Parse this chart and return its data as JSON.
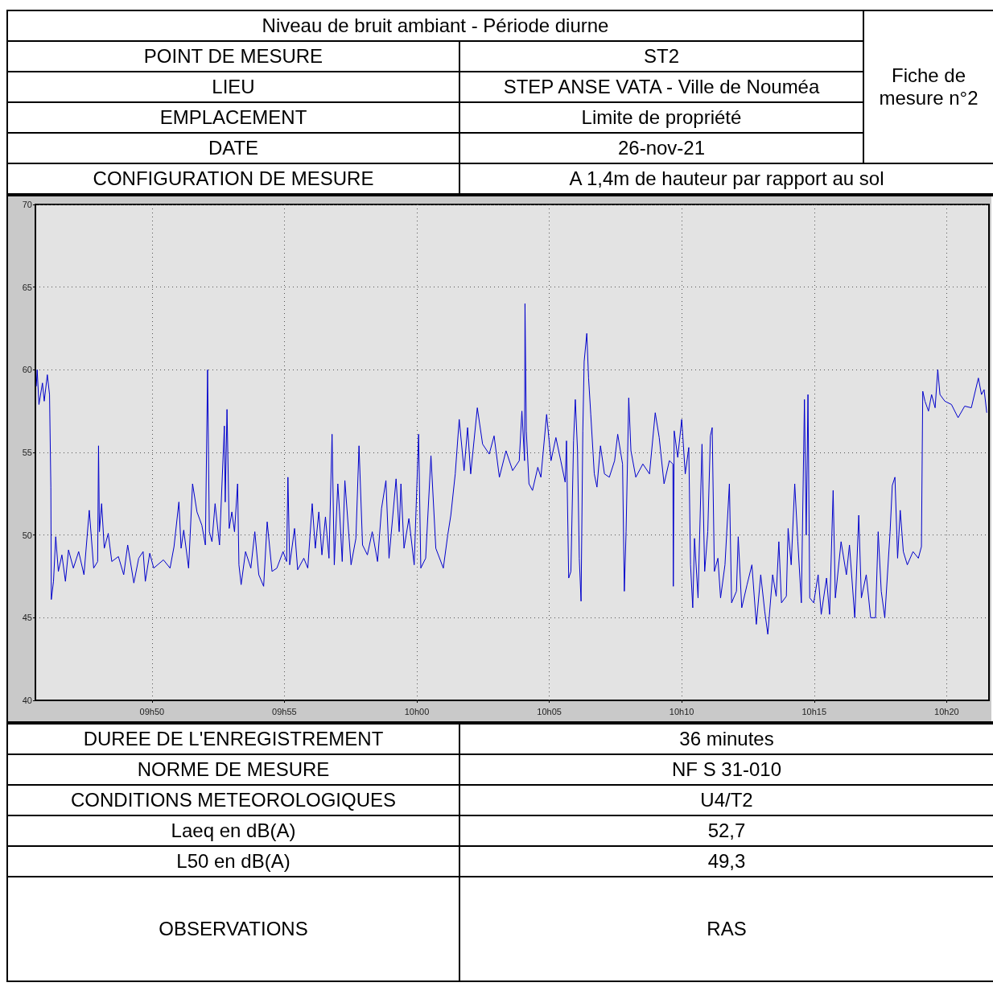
{
  "chart_data": {
    "type": "line",
    "title": "Niveau de bruit ambiant - Période diurne",
    "annotations": [
      "Fiche de mesure n°2",
      "POINT DE MESURE",
      "ST2",
      "LIEU",
      "STEP ANSE VATA - Ville de Nouméa",
      "EMPLACEMENT",
      "Limite de propriété",
      "DATE",
      "26-nov-21",
      "CONFIGURATION DE MESURE",
      "A 1,4m de hauteur par rapport au sol",
      "DUREE DE L'ENREGISTREMENT",
      "36 minutes",
      "NORME DE MESURE",
      "NF S 31-010",
      "CONDITIONS METEOROLOGIQUES",
      "U4/T2",
      "Laeq en dB(A)",
      "52,7",
      "L50 en dB(A)",
      "49,3",
      "OBSERVATIONS",
      "RAS"
    ],
    "xlim": [
      "--11-26T09:45:36",
      "--11-26T10:21:36"
    ],
    "xticks": [
      {
        "value": "--11-26T09:50",
        "label": "09h50"
      },
      {
        "value": "--11-26T09:55",
        "label": "09h55"
      },
      {
        "value": "--11-26T10:00",
        "label": "10h00"
      },
      {
        "value": "--11-26T10:05",
        "label": "10h05"
      },
      {
        "value": "--11-26T10:10",
        "label": "10h10"
      },
      {
        "value": "--11-26T10:15",
        "label": "10h15"
      },
      {
        "value": "--11-26T10:20",
        "label": "10h20"
      }
    ],
    "ylim": [
      40,
      70
    ],
    "yticks": [
      40,
      45,
      50,
      55,
      60,
      65,
      70
    ],
    "grid": true,
    "line_style": "solid",
    "marker": "none",
    "series": [
      {
        "color": "#0000cc",
        "x": [
          "--11-26T09:45:38",
          "--11-26T09:45:40",
          "--11-26T09:45:44",
          "--11-26T09:45:52",
          "--11-26T09:45:56",
          "--11-26T09:46:03",
          "--11-26T09:46:08",
          "--11-26T09:46:11",
          "--11-26T09:46:12",
          "--11-26T09:46:17",
          "--11-26T09:46:22",
          "--11-26T09:46:28",
          "--11-26T09:46:36",
          "--11-26T09:46:44",
          "--11-26T09:46:51",
          "--11-26T09:47:02",
          "--11-26T09:47:14",
          "--11-26T09:47:26",
          "--11-26T09:47:38",
          "--11-26T09:47:48",
          "--11-26T09:47:57",
          "--11-26T09:47:59",
          "--11-26T09:48:01",
          "--11-26T09:48:06",
          "--11-26T09:48:12",
          "--11-26T09:48:21",
          "--11-26T09:48:29",
          "--11-26T09:48:44",
          "--11-26T09:48:56",
          "--11-26T09:49:05",
          "--11-26T09:49:19",
          "--11-26T09:49:30",
          "--11-26T09:49:40",
          "--11-26T09:49:45",
          "--11-26T09:49:55",
          "--11-26T09:50:04",
          "--11-26T09:50:26",
          "--11-26T09:50:41",
          "--11-26T09:50:50",
          "--11-26T09:51:01",
          "--11-26T09:51:06",
          "--11-26T09:51:12",
          "--11-26T09:51:23",
          "--11-26T09:51:32",
          "--11-26T09:51:42",
          "--11-26T09:51:53",
          "--11-26T09:52:01",
          "--11-26T09:52:06",
          "--11-26T09:52:10",
          "--11-26T09:52:16",
          "--11-26T09:52:23",
          "--11-26T09:52:33",
          "--11-26T09:52:44",
          "--11-26T09:52:46",
          "--11-26T09:52:50",
          "--11-26T09:52:55",
          "--11-26T09:53:01",
          "--11-26T09:53:07",
          "--11-26T09:53:14",
          "--11-26T09:53:17",
          "--11-26T09:53:22",
          "--11-26T09:53:32",
          "--11-26T09:53:44",
          "--11-26T09:53:53",
          "--11-26T09:54:02",
          "--11-26T09:54:13",
          "--11-26T09:54:21",
          "--11-26T09:54:32",
          "--11-26T09:54:43",
          "--11-26T09:54:57",
          "--11-26T09:55:05",
          "--11-26T09:55:08",
          "--11-26T09:55:12",
          "--11-26T09:55:23",
          "--11-26T09:55:30",
          "--11-26T09:55:44",
          "--11-26T09:55:53",
          "--11-26T09:56:03",
          "--11-26T09:56:10",
          "--11-26T09:56:18",
          "--11-26T09:56:25",
          "--11-26T09:56:33",
          "--11-26T09:56:41",
          "--11-26T09:56:48",
          "--11-26T09:56:53",
          "--11-26T09:57:01",
          "--11-26T09:57:05",
          "--11-26T09:57:11",
          "--11-26T09:57:17",
          "--11-26T09:57:31",
          "--11-26T09:57:42",
          "--11-26T09:57:49",
          "--11-26T09:57:57",
          "--11-26T09:58:08",
          "--11-26T09:58:19",
          "--11-26T09:58:31",
          "--11-26T09:58:40",
          "--11-26T09:58:50",
          "--11-26T09:58:57",
          "--11-26T09:59:13",
          "--11-26T09:59:20",
          "--11-26T09:59:24",
          "--11-26T09:59:31",
          "--11-26T09:59:42",
          "--11-26T09:59:54",
          "--11-26T10:00:04",
          "--11-26T10:00:09",
          "--11-26T10:00:20",
          "--11-26T10:00:32",
          "--11-26T10:00:43",
          "--11-26T10:01:00",
          "--11-26T10:01:10",
          "--11-26T10:01:17",
          "--11-26T10:01:27",
          "--11-26T10:01:36",
          "--11-26T10:01:47",
          "--11-26T10:01:55",
          "--11-26T10:02:02",
          "--11-26T10:02:17",
          "--11-26T10:02:29",
          "--11-26T10:02:44",
          "--11-26T10:02:55",
          "--11-26T10:03:07",
          "--11-26T10:03:22",
          "--11-26T10:03:37",
          "--11-26T10:03:52",
          "--11-26T10:03:58",
          "--11-26T10:04:04",
          "--11-26T10:04:05",
          "--11-26T10:04:08",
          "--11-26T10:04:14",
          "--11-26T10:04:22",
          "--11-26T10:04:34",
          "--11-26T10:04:41",
          "--11-26T10:04:54",
          "--11-26T10:05:04",
          "--11-26T10:05:15",
          "--11-26T10:05:26",
          "--11-26T10:05:36",
          "--11-26T10:05:39",
          "--11-26T10:05:44",
          "--11-26T10:05:49",
          "--11-26T10:05:55",
          "--11-26T10:05:59",
          "--11-26T10:06:04",
          "--11-26T10:06:08",
          "--11-26T10:06:12",
          "--11-26T10:06:16",
          "--11-26T10:06:19",
          "--11-26T10:06:25",
          "--11-26T10:06:29",
          "--11-26T10:06:34",
          "--11-26T10:06:42",
          "--11-26T10:06:48",
          "--11-26T10:06:56",
          "--11-26T10:07:05",
          "--11-26T10:07:16",
          "--11-26T10:07:28",
          "--11-26T10:07:35",
          "--11-26T10:07:46",
          "--11-26T10:07:50",
          "--11-26T10:07:54",
          "--11-26T10:08:00",
          "--11-26T10:08:05",
          "--11-26T10:08:16",
          "--11-26T10:08:32",
          "--11-26T10:08:47",
          "--11-26T10:09:00",
          "--11-26T10:09:09",
          "--11-26T10:09:20",
          "--11-26T10:09:32",
          "--11-26T10:09:40",
          "--11-26T10:09:41",
          "--11-26T10:09:43",
          "--11-26T10:09:51",
          "--11-26T10:10:00",
          "--11-26T10:10:08",
          "--11-26T10:10:16",
          "--11-26T10:10:20",
          "--11-26T10:10:25",
          "--11-26T10:10:29",
          "--11-26T10:10:37",
          "--11-26T10:10:46",
          "--11-26T10:10:52",
          "--11-26T10:10:59",
          "--11-26T10:11:05",
          "--11-26T10:11:09",
          "--11-26T10:11:14",
          "--11-26T10:11:22",
          "--11-26T10:11:28",
          "--11-26T10:11:38",
          "--11-26T10:11:48",
          "--11-26T10:11:53",
          "--11-26T10:12:04",
          "--11-26T10:12:08",
          "--11-26T10:12:16",
          "--11-26T10:12:28",
          "--11-26T10:12:39",
          "--11-26T10:12:49",
          "--11-26T10:12:59",
          "--11-26T10:13:08",
          "--11-26T10:13:15",
          "--11-26T10:13:26",
          "--11-26T10:13:34",
          "--11-26T10:13:40",
          "--11-26T10:13:46",
          "--11-26T10:13:57",
          "--11-26T10:14:01",
          "--11-26T10:14:08",
          "--11-26T10:14:16",
          "--11-26T10:14:23",
          "--11-26T10:14:31",
          "--11-26T10:14:38",
          "--11-26T10:14:42",
          "--11-26T10:14:46",
          "--11-26T10:14:50",
          "--11-26T10:14:59",
          "--11-26T10:15:09",
          "--11-26T10:15:16",
          "--11-26T10:15:28",
          "--11-26T10:15:35",
          "--11-26T10:15:43",
          "--11-26T10:15:48",
          "--11-26T10:16:01",
          "--11-26T10:16:13",
          "--11-26T10:16:20",
          "--11-26T10:16:32",
          "--11-26T10:16:41",
          "--11-26T10:16:47",
          "--11-26T10:16:58",
          "--11-26T10:17:08",
          "--11-26T10:17:19",
          "--11-26T10:17:25",
          "--11-26T10:17:32",
          "--11-26T10:17:40",
          "--11-26T10:17:52",
          "--11-26T10:17:57",
          "--11-26T10:18:03",
          "--11-26T10:18:09",
          "--11-26T10:18:15",
          "--11-26T10:18:22",
          "--11-26T10:18:31",
          "--11-26T10:18:44",
          "--11-26T10:18:56",
          "--11-26T10:19:03",
          "--11-26T10:19:06",
          "--11-26T10:19:11",
          "--11-26T10:19:19",
          "--11-26T10:19:26",
          "--11-26T10:19:34",
          "--11-26T10:19:40",
          "--11-26T10:19:45",
          "--11-26T10:19:56",
          "--11-26T10:20:11",
          "--11-26T10:20:26",
          "--11-26T10:20:41",
          "--11-26T10:20:56",
          "--11-26T10:21:12",
          "--11-26T10:21:19",
          "--11-26T10:21:25",
          "--11-26T10:21:31"
        ],
        "values": [
          59.0,
          60.0,
          57.9,
          59.2,
          58.1,
          59.7,
          58.5,
          52.9,
          46.1,
          47.2,
          49.9,
          47.8,
          48.8,
          47.2,
          49.1,
          48.0,
          49.0,
          47.6,
          51.5,
          48.0,
          48.4,
          55.4,
          50.2,
          51.9,
          49.2,
          50.1,
          48.4,
          48.7,
          47.6,
          49.4,
          47.1,
          48.6,
          49.0,
          47.2,
          48.9,
          48.0,
          48.5,
          48.0,
          49.3,
          52.0,
          49.2,
          50.3,
          48.0,
          53.1,
          51.4,
          50.6,
          49.4,
          60.0,
          50.2,
          49.6,
          51.9,
          49.4,
          56.6,
          52.0,
          57.6,
          50.4,
          51.4,
          50.2,
          53.1,
          48.2,
          47.0,
          49.0,
          48.0,
          50.2,
          47.6,
          46.9,
          50.8,
          47.8,
          48.0,
          49.0,
          48.4,
          53.5,
          48.2,
          50.4,
          47.9,
          48.6,
          48.0,
          51.9,
          49.2,
          51.4,
          48.8,
          51.1,
          48.6,
          56.1,
          48.2,
          53.1,
          51.4,
          48.4,
          53.3,
          48.2,
          49.8,
          55.4,
          49.4,
          48.8,
          50.2,
          48.4,
          51.6,
          53.3,
          48.6,
          53.4,
          50.2,
          53.1,
          49.2,
          51.0,
          48.2,
          56.1,
          48.0,
          48.6,
          54.8,
          49.2,
          48.0,
          50.0,
          51.2,
          53.7,
          57.0,
          53.9,
          56.5,
          53.7,
          57.7,
          55.5,
          54.9,
          56.0,
          53.5,
          55.1,
          53.9,
          54.5,
          57.5,
          54.5,
          64.0,
          56.3,
          53.1,
          52.7,
          54.1,
          53.5,
          57.3,
          54.5,
          55.9,
          54.5,
          53.2,
          55.7,
          47.4,
          47.8,
          55.7,
          58.2,
          55.1,
          48.6,
          46.0,
          56.3,
          60.5,
          62.2,
          59.5,
          57.3,
          53.7,
          52.9,
          55.4,
          53.7,
          53.5,
          54.5,
          56.1,
          54.3,
          46.6,
          50.2,
          58.3,
          55.1,
          53.5,
          54.3,
          53.7,
          57.4,
          55.9,
          53.1,
          54.5,
          54.3,
          46.9,
          56.3,
          54.7,
          57.0,
          53.7,
          55.3,
          48.2,
          45.6,
          49.8,
          46.2,
          55.5,
          47.8,
          50.2,
          56.0,
          56.5,
          47.8,
          48.6,
          46.2,
          48.2,
          53.1,
          45.9,
          46.6,
          49.9,
          45.6,
          47.0,
          48.2,
          44.6,
          47.6,
          45.4,
          44.0,
          47.6,
          46.3,
          49.6,
          45.9,
          46.3,
          50.4,
          48.2,
          53.1,
          49.6,
          45.9,
          58.2,
          50.0,
          58.5,
          46.2,
          45.9,
          47.6,
          45.2,
          47.4,
          45.2,
          52.7,
          46.2,
          49.6,
          47.6,
          49.4,
          45.0,
          51.2,
          46.2,
          47.6,
          45.0,
          45.0,
          50.2,
          46.6,
          45.0,
          50.2,
          53.0,
          53.5,
          48.6,
          51.5,
          49.0,
          48.2,
          49.0,
          48.6,
          49.3,
          58.7,
          58.1,
          57.5,
          58.5,
          57.7,
          60.0,
          58.5,
          58.1,
          57.9,
          57.1,
          57.8,
          57.7,
          59.5,
          58.5,
          58.8,
          57.4
        ]
      }
    ]
  }
}
